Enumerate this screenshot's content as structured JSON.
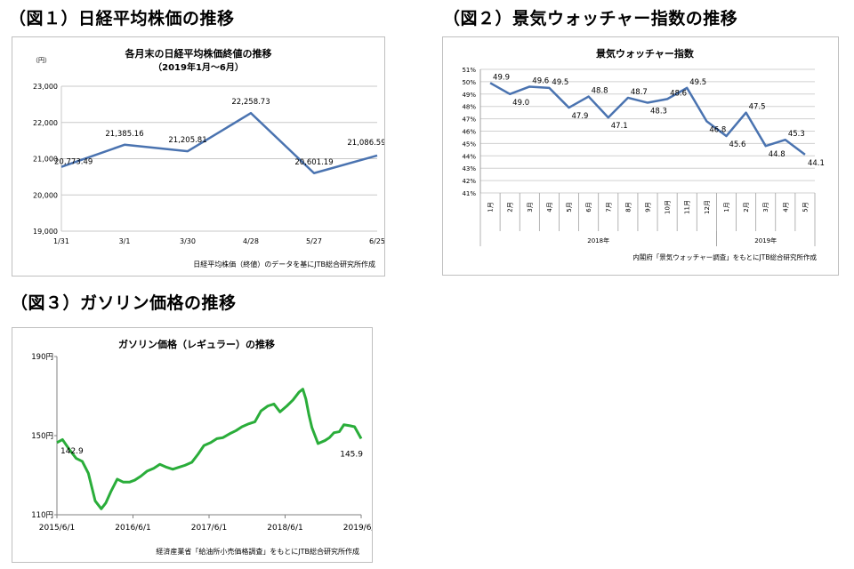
{
  "headings": {
    "fig1": "（図１）日経平均株価の推移",
    "fig2": "（図２）景気ウォッチャー指数の推移",
    "fig3": "（図３）ガソリン価格の推移"
  },
  "chart_data": [
    {
      "type": "line",
      "title": "各月末の日経平均株価終値の推移",
      "subtitle": "（2019年1月〜6月）",
      "unit": "（円）",
      "categories": [
        "1/31",
        "3/1",
        "3/30",
        "4/28",
        "5/27",
        "6/25"
      ],
      "values": [
        20773.49,
        21385.16,
        21205.81,
        22258.73,
        20601.19,
        21086.59
      ],
      "value_labels": [
        "20,773.49",
        "21,385.16",
        "21,205.81",
        "22,258.73",
        "20,601.19",
        "21,086.59"
      ],
      "ylim": [
        19000,
        23000
      ],
      "yticks": [
        "19,000",
        "20,000",
        "21,000",
        "22,000",
        "23,000"
      ],
      "source": "日経平均株価（終値）のデータを基にJTB総合研究所作成",
      "grid": true,
      "color": "#4a73b0"
    },
    {
      "type": "line",
      "title": "景気ウォッチャー指数",
      "categories": [
        "1月",
        "2月",
        "3月",
        "4月",
        "5月",
        "6月",
        "7月",
        "8月",
        "9月",
        "10月",
        "11月",
        "12月",
        "1月",
        "2月",
        "3月",
        "4月",
        "5月"
      ],
      "year_groups": [
        {
          "label": "2018年",
          "count": 12
        },
        {
          "label": "2019年",
          "count": 5
        }
      ],
      "values": [
        49.9,
        49.0,
        49.6,
        49.5,
        47.9,
        48.8,
        47.1,
        48.7,
        48.3,
        48.6,
        49.5,
        46.8,
        45.6,
        47.5,
        44.8,
        45.3,
        44.1
      ],
      "value_labels": [
        "49.9",
        "49.0",
        "49.6",
        "49.5",
        "47.9",
        "48.8",
        "47.1",
        "48.7",
        "48.3",
        "48.6",
        "49.5",
        "46.8",
        "45.6",
        "47.5",
        "44.8",
        "45.3",
        "44.1"
      ],
      "ylim": [
        41,
        51
      ],
      "yticks": [
        "41%",
        "42%",
        "43%",
        "44%",
        "45%",
        "46%",
        "47%",
        "48%",
        "49%",
        "50%",
        "51%"
      ],
      "source": "内閣府「景気ウォッチャー調査」をもとにJTB総合研究所作成",
      "grid": true,
      "color": "#4a73b0"
    },
    {
      "type": "line",
      "title": "ガソリン価格（レギュラー）の推移",
      "x_start": "2015/6/1",
      "x_end": "2019/6/1",
      "xticks": [
        {
          "label": "2015/6/1",
          "x": 2015.417
        },
        {
          "label": "2016/6/1",
          "x": 2016.417
        },
        {
          "label": "2017/6/1",
          "x": 2017.417
        },
        {
          "label": "2018/6/1",
          "x": 2018.417
        },
        {
          "label": "2019/6/1",
          "x": 2019.417
        }
      ],
      "yticks": [
        {
          "label": "110円",
          "y": 110
        },
        {
          "label": "150円",
          "y": 150
        },
        {
          "label": "190円",
          "y": 190
        }
      ],
      "ylim": [
        110,
        190
      ],
      "x": [
        2015.417,
        2015.49,
        2015.58,
        2015.67,
        2015.75,
        2015.83,
        2015.92,
        2016.0,
        2016.06,
        2016.13,
        2016.21,
        2016.29,
        2016.37,
        2016.44,
        2016.52,
        2016.6,
        2016.69,
        2016.77,
        2016.86,
        2016.94,
        2017.02,
        2017.1,
        2017.19,
        2017.27,
        2017.35,
        2017.44,
        2017.52,
        2017.6,
        2017.69,
        2017.77,
        2017.85,
        2017.94,
        2018.02,
        2018.1,
        2018.19,
        2018.27,
        2018.35,
        2018.44,
        2018.52,
        2018.6,
        2018.65,
        2018.69,
        2018.73,
        2018.77,
        2018.85,
        2018.94,
        2019.0,
        2019.06,
        2019.13,
        2019.19,
        2019.27,
        2019.33,
        2019.417
      ],
      "values": [
        146.5,
        148.0,
        143.0,
        138.5,
        137.0,
        131.0,
        117.0,
        113.0,
        116.0,
        122.0,
        128.0,
        126.5,
        126.5,
        127.5,
        129.5,
        132.0,
        133.5,
        135.5,
        134.0,
        133.0,
        134.0,
        135.0,
        136.5,
        140.5,
        145.0,
        146.5,
        148.5,
        149.0,
        151.0,
        152.5,
        154.5,
        156.0,
        157.0,
        162.5,
        165.0,
        166.0,
        162.0,
        165.0,
        168.0,
        172.0,
        173.5,
        168.5,
        160.5,
        154.0,
        146.0,
        147.5,
        149.0,
        151.5,
        152.0,
        155.5,
        155.0,
        154.5,
        148.5
      ],
      "annotations": [
        {
          "text": "142.9",
          "at": "start"
        },
        {
          "text": "145.9",
          "at": "end"
        }
      ],
      "source": "経済産業省「給油所小売価格調査」をもとにJTB総合研究所作成",
      "grid": false,
      "color": "#2aad3a"
    }
  ]
}
